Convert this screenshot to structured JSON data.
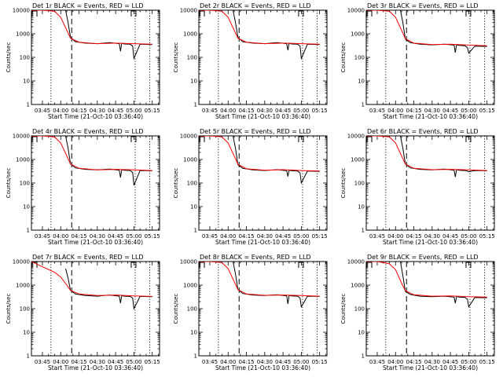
{
  "colors": {
    "events": "#000000",
    "lld": "#ff0000"
  },
  "common": {
    "ylabel": "Counts/sec",
    "xlabel": "Start Time (21-Oct-10 03:36:40)",
    "title_suffix": " BLACK = Events, RED = LLD",
    "xticks": [
      "03:45",
      "04:00",
      "04:15",
      "04:30",
      "04:45",
      "05:00",
      "05:15"
    ],
    "yticks": [
      "1",
      "10",
      "100",
      "1000",
      "10000"
    ]
  },
  "chart_data": [
    {
      "type": "line",
      "title": "Det 1r BLACK = Events, RED = LLD",
      "xlabel": "Start Time (21-Oct-10 03:36:40)",
      "ylabel": "Counts/sec",
      "yscale": "log",
      "ylim": [
        1,
        10000
      ],
      "xlim": [
        "03:36",
        "05:21"
      ],
      "vlines_dotted": [
        "03:52",
        "05:01",
        "05:13"
      ],
      "vline_dashed": "04:09",
      "series": [
        {
          "name": "Events",
          "x": [
            "04:04",
            "04:06",
            "04:08",
            "04:12",
            "04:20",
            "04:30",
            "04:40",
            "04:48",
            "04:49",
            "04:50",
            "04:52",
            "04:57",
            "04:59",
            "05:00",
            "05:05",
            "05:15"
          ],
          "values": [
            10000,
            3000,
            700,
            460,
            400,
            380,
            420,
            380,
            180,
            400,
            370,
            360,
            300,
            90,
            360,
            350
          ]
        },
        {
          "name": "LLD",
          "x": [
            "03:36",
            "03:45",
            "03:55",
            "04:00",
            "04:05",
            "04:08",
            "04:15",
            "04:30",
            "04:45",
            "05:00",
            "05:15"
          ],
          "values": [
            10000,
            10000,
            9000,
            5000,
            1400,
            650,
            440,
            380,
            400,
            380,
            360
          ]
        }
      ]
    },
    {
      "type": "line",
      "title": "Det 2r BLACK = Events, RED = LLD",
      "xlabel": "Start Time (21-Oct-10 03:36:40)",
      "ylabel": "Counts/sec",
      "yscale": "log",
      "ylim": [
        1,
        10000
      ],
      "xlim": [
        "03:36",
        "05:21"
      ],
      "vlines_dotted": [
        "03:52",
        "05:01",
        "05:13"
      ],
      "vline_dashed": "04:09",
      "series": [
        {
          "name": "Events",
          "x": [
            "04:04",
            "04:06",
            "04:08",
            "04:12",
            "04:20",
            "04:30",
            "04:40",
            "04:48",
            "04:49",
            "04:50",
            "04:52",
            "04:57",
            "04:59",
            "05:00",
            "05:05",
            "05:15"
          ],
          "values": [
            10000,
            3000,
            700,
            460,
            400,
            380,
            420,
            380,
            200,
            400,
            370,
            360,
            300,
            90,
            360,
            350
          ]
        },
        {
          "name": "LLD",
          "x": [
            "03:36",
            "03:45",
            "03:55",
            "04:00",
            "04:05",
            "04:08",
            "04:15",
            "04:30",
            "04:45",
            "05:00",
            "05:15"
          ],
          "values": [
            10000,
            10000,
            9000,
            5000,
            1400,
            650,
            440,
            380,
            400,
            380,
            360
          ]
        }
      ]
    },
    {
      "type": "line",
      "title": "Det 3r BLACK = Events, RED = LLD",
      "xlabel": "Start Time (21-Oct-10 03:36:40)",
      "ylabel": "Counts/sec",
      "yscale": "log",
      "ylim": [
        1,
        10000
      ],
      "xlim": [
        "03:36",
        "05:21"
      ],
      "vlines_dotted": [
        "03:52",
        "05:01",
        "05:13"
      ],
      "vline_dashed": "04:09",
      "series": [
        {
          "name": "Events",
          "x": [
            "04:04",
            "04:06",
            "04:08",
            "04:12",
            "04:20",
            "04:30",
            "04:40",
            "04:48",
            "04:49",
            "04:50",
            "04:52",
            "04:57",
            "04:59",
            "05:00",
            "05:05",
            "05:15"
          ],
          "values": [
            10000,
            3000,
            600,
            420,
            360,
            340,
            360,
            330,
            160,
            340,
            320,
            310,
            260,
            150,
            300,
            290
          ]
        },
        {
          "name": "LLD",
          "x": [
            "03:36",
            "03:45",
            "03:55",
            "04:00",
            "04:05",
            "04:08",
            "04:15",
            "04:30",
            "04:45",
            "05:00",
            "05:15"
          ],
          "values": [
            10000,
            10000,
            9000,
            5000,
            1400,
            620,
            400,
            350,
            360,
            330,
            310
          ]
        }
      ]
    },
    {
      "type": "line",
      "title": "Det 4r BLACK = Events, RED = LLD",
      "xlabel": "Start Time (21-Oct-10 03:36:40)",
      "ylabel": "Counts/sec",
      "yscale": "log",
      "ylim": [
        1,
        10000
      ],
      "xlim": [
        "03:36",
        "05:21"
      ],
      "vlines_dotted": [
        "03:52",
        "05:01",
        "05:13"
      ],
      "vline_dashed": "04:09",
      "series": [
        {
          "name": "Events",
          "x": [
            "04:04",
            "04:06",
            "04:08",
            "04:12",
            "04:20",
            "04:30",
            "04:40",
            "04:48",
            "04:49",
            "04:50",
            "04:52",
            "04:57",
            "04:59",
            "05:00",
            "05:05",
            "05:15"
          ],
          "values": [
            10000,
            3000,
            650,
            440,
            380,
            360,
            390,
            350,
            170,
            370,
            350,
            340,
            280,
            80,
            340,
            330
          ]
        },
        {
          "name": "LLD",
          "x": [
            "03:36",
            "03:45",
            "03:55",
            "04:00",
            "04:05",
            "04:08",
            "04:15",
            "04:30",
            "04:45",
            "05:00",
            "05:15"
          ],
          "values": [
            10000,
            10000,
            9000,
            5000,
            1400,
            640,
            420,
            360,
            380,
            360,
            340
          ]
        }
      ]
    },
    {
      "type": "line",
      "title": "Det 5r BLACK = Events, RED = LLD",
      "xlabel": "Start Time (21-Oct-10 03:36:40)",
      "ylabel": "Counts/sec",
      "yscale": "log",
      "ylim": [
        1,
        10000
      ],
      "xlim": [
        "03:36",
        "05:21"
      ],
      "vlines_dotted": [
        "03:52",
        "05:01",
        "05:13"
      ],
      "vline_dashed": "04:09",
      "series": [
        {
          "name": "Events",
          "x": [
            "04:04",
            "04:06",
            "04:08",
            "04:12",
            "04:20",
            "04:30",
            "04:40",
            "04:48",
            "04:49",
            "04:50",
            "04:52",
            "04:57",
            "04:59",
            "05:00",
            "05:05",
            "05:15"
          ],
          "values": [
            10000,
            3000,
            600,
            420,
            360,
            340,
            370,
            330,
            190,
            350,
            330,
            320,
            270,
            100,
            320,
            310
          ]
        },
        {
          "name": "LLD",
          "x": [
            "03:36",
            "03:45",
            "03:55",
            "04:00",
            "04:05",
            "04:08",
            "04:15",
            "04:30",
            "04:45",
            "05:00",
            "05:15"
          ],
          "values": [
            10000,
            10000,
            9000,
            5000,
            1400,
            620,
            400,
            350,
            370,
            340,
            320
          ]
        }
      ]
    },
    {
      "type": "line",
      "title": "Det 6r BLACK = Events, RED = LLD",
      "xlabel": "Start Time (21-Oct-10 03:36:40)",
      "ylabel": "Counts/sec",
      "yscale": "log",
      "ylim": [
        1,
        10000
      ],
      "xlim": [
        "03:36",
        "05:21"
      ],
      "vlines_dotted": [
        "03:52",
        "05:01",
        "05:13"
      ],
      "vline_dashed": "04:09",
      "series": [
        {
          "name": "Events",
          "x": [
            "04:04",
            "04:06",
            "04:08",
            "04:12",
            "04:20",
            "04:30",
            "04:40",
            "04:48",
            "04:49",
            "04:50",
            "04:52",
            "04:57",
            "04:59",
            "05:00",
            "05:05",
            "05:15"
          ],
          "values": [
            10000,
            3000,
            650,
            440,
            380,
            360,
            390,
            350,
            180,
            370,
            350,
            340,
            320,
            300,
            340,
            330
          ]
        },
        {
          "name": "LLD",
          "x": [
            "03:36",
            "03:45",
            "03:55",
            "04:00",
            "04:05",
            "04:08",
            "04:15",
            "04:30",
            "04:45",
            "05:00",
            "05:15"
          ],
          "values": [
            10000,
            10000,
            9000,
            5000,
            1400,
            640,
            420,
            370,
            380,
            360,
            340
          ]
        }
      ]
    },
    {
      "type": "line",
      "title": "Det 7r BLACK = Events, RED = LLD",
      "xlabel": "Start Time (21-Oct-10 03:36:40)",
      "ylabel": "Counts/sec",
      "yscale": "log",
      "ylim": [
        1,
        10000
      ],
      "xlim": [
        "03:36",
        "05:21"
      ],
      "vlines_dotted": [
        "03:52",
        "05:01",
        "05:13"
      ],
      "vline_dashed": "04:09",
      "series": [
        {
          "name": "Events",
          "x": [
            "04:04",
            "04:06",
            "04:08",
            "04:12",
            "04:20",
            "04:30",
            "04:40",
            "04:48",
            "04:49",
            "04:50",
            "04:52",
            "04:57",
            "04:59",
            "05:00",
            "05:05",
            "05:15"
          ],
          "values": [
            5000,
            2000,
            600,
            420,
            360,
            340,
            380,
            340,
            170,
            360,
            340,
            330,
            280,
            100,
            330,
            320
          ]
        },
        {
          "name": "LLD",
          "x": [
            "03:36",
            "03:45",
            "03:55",
            "04:00",
            "04:05",
            "04:08",
            "04:15",
            "04:30",
            "04:45",
            "05:00",
            "05:15"
          ],
          "values": [
            10000,
            6000,
            3500,
            2200,
            1000,
            600,
            420,
            360,
            380,
            350,
            330
          ]
        }
      ]
    },
    {
      "type": "line",
      "title": "Det 8r BLACK = Events, RED = LLD",
      "xlabel": "Start Time (21-Oct-10 03:36:40)",
      "ylabel": "Counts/sec",
      "yscale": "log",
      "ylim": [
        1,
        10000
      ],
      "xlim": [
        "03:36",
        "05:21"
      ],
      "vlines_dotted": [
        "03:52",
        "05:01",
        "05:13"
      ],
      "vline_dashed": "04:09",
      "series": [
        {
          "name": "Events",
          "x": [
            "04:04",
            "04:06",
            "04:08",
            "04:12",
            "04:20",
            "04:30",
            "04:40",
            "04:48",
            "04:49",
            "04:50",
            "04:52",
            "04:57",
            "04:59",
            "05:00",
            "05:05",
            "05:15"
          ],
          "values": [
            10000,
            3000,
            650,
            440,
            380,
            360,
            390,
            350,
            160,
            370,
            350,
            340,
            280,
            120,
            340,
            330
          ]
        },
        {
          "name": "LLD",
          "x": [
            "03:36",
            "03:45",
            "03:55",
            "04:00",
            "04:05",
            "04:08",
            "04:15",
            "04:30",
            "04:45",
            "05:00",
            "05:15"
          ],
          "values": [
            10000,
            10000,
            9000,
            5000,
            1400,
            640,
            420,
            370,
            380,
            360,
            340
          ]
        }
      ]
    },
    {
      "type": "line",
      "title": "Det 9r BLACK = Events, RED = LLD",
      "xlabel": "Start Time (21-Oct-10 03:36:40)",
      "ylabel": "Counts/sec",
      "yscale": "log",
      "ylim": [
        1,
        10000
      ],
      "xlim": [
        "03:36",
        "05:21"
      ],
      "vlines_dotted": [
        "03:52",
        "05:01",
        "05:13"
      ],
      "vline_dashed": "04:09",
      "series": [
        {
          "name": "Events",
          "x": [
            "04:04",
            "04:06",
            "04:08",
            "04:12",
            "04:20",
            "04:30",
            "04:40",
            "04:48",
            "04:49",
            "04:50",
            "04:52",
            "04:57",
            "04:59",
            "05:00",
            "05:05",
            "05:15"
          ],
          "values": [
            10000,
            2500,
            550,
            400,
            340,
            320,
            340,
            310,
            170,
            330,
            310,
            300,
            250,
            120,
            300,
            290
          ]
        },
        {
          "name": "LLD",
          "x": [
            "03:36",
            "03:45",
            "03:55",
            "04:00",
            "04:05",
            "04:08",
            "04:15",
            "04:30",
            "04:45",
            "05:00",
            "05:15"
          ],
          "values": [
            10000,
            10000,
            8000,
            4500,
            1200,
            580,
            390,
            340,
            350,
            320,
            310
          ]
        }
      ]
    }
  ]
}
